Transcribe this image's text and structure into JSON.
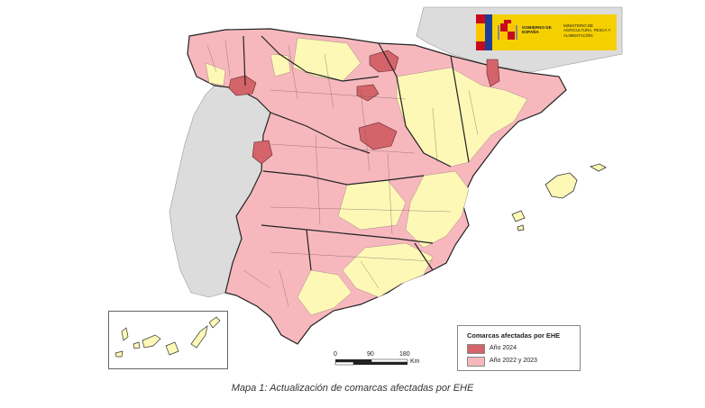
{
  "caption": "Mapa 1: Actualización de comarcas afectadas por EHE",
  "logo": {
    "gobierno": "GOBIERNO DE ESPAÑA",
    "ministerio": "MINISTERIO DE AGRICULTURA, PESCA Y ALIMENTACIÓN"
  },
  "legend": {
    "title": "Comarcas afectadas por EHE",
    "items": [
      {
        "label": "Año 2024",
        "color": "#d4646a"
      },
      {
        "label": "Año 2022 y 2023",
        "color": "#f7b8bd"
      }
    ]
  },
  "scale": {
    "ticks": [
      "0",
      "90",
      "180"
    ],
    "unit": "Km"
  },
  "colors": {
    "affected_2024": "#d4646a",
    "affected_2022_2023": "#f7b8bd",
    "not_affected": "#fdf8b6",
    "portugal_france": "#dcdcdc",
    "borders": "#333333"
  }
}
